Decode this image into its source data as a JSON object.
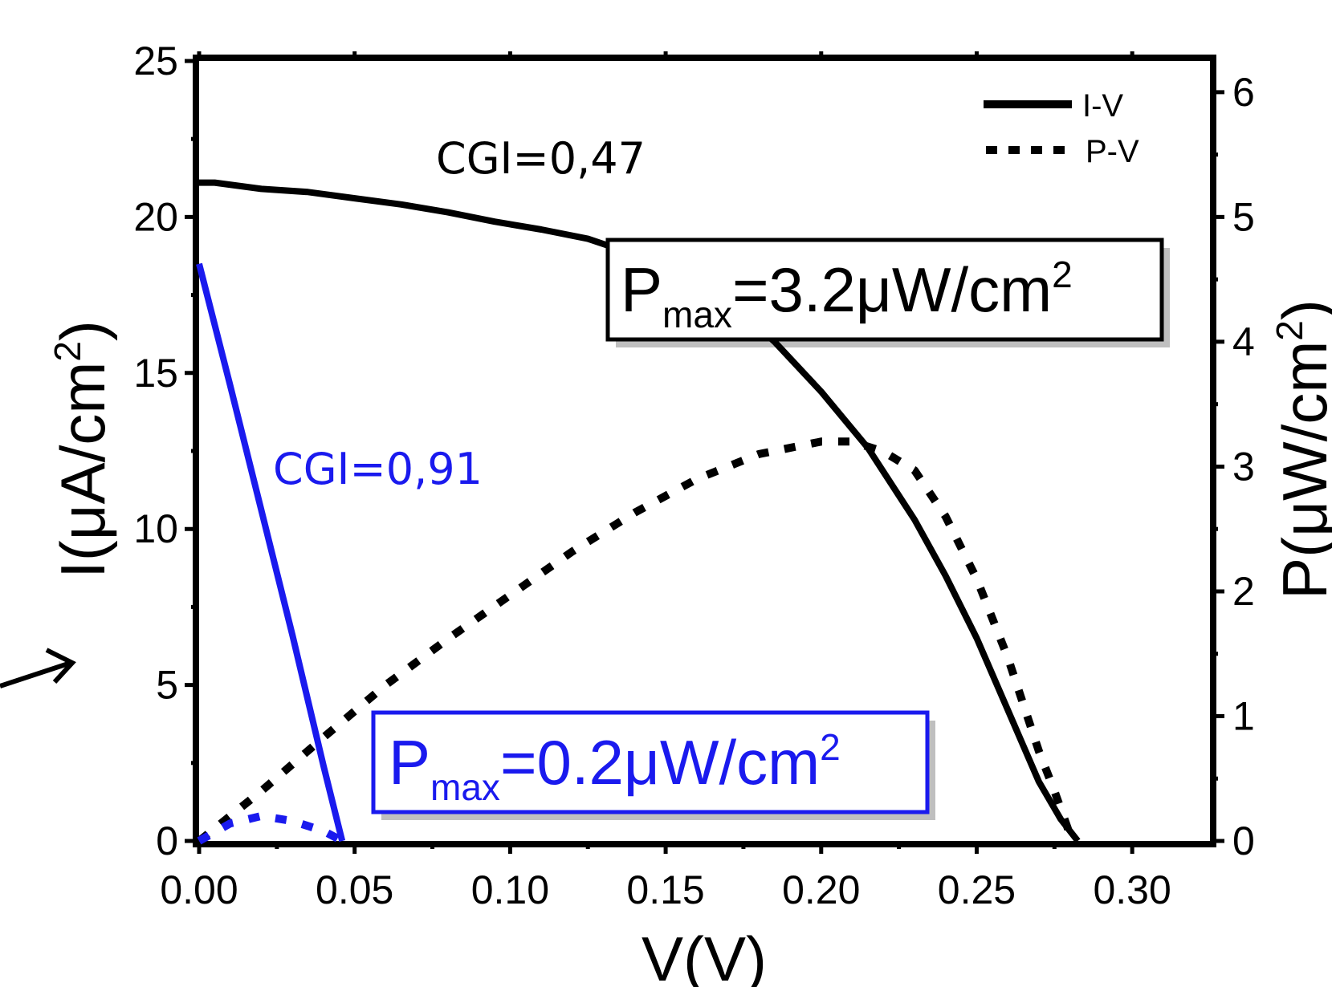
{
  "chart_data": {
    "type": "line",
    "xlabel": "V(V)",
    "ylabel_left": "I(μA/cm2)",
    "ylabel_right": "P(μW/cm2)",
    "xlim": [
      0,
      0.325
    ],
    "ylim_left": [
      0,
      25
    ],
    "ylim_right": [
      0,
      6.25
    ],
    "x_ticks": [
      "0.00",
      "0.05",
      "0.10",
      "0.15",
      "0.20",
      "0.25",
      "0.30"
    ],
    "y_left_ticks": [
      "0",
      "5",
      "10",
      "15",
      "20",
      "25"
    ],
    "y_right_ticks": [
      "0",
      "1",
      "2",
      "3",
      "4",
      "5",
      "6"
    ],
    "legend": {
      "position": "top-right",
      "entries": [
        {
          "label": "I-V",
          "style": "solid"
        },
        {
          "label": "P-V",
          "style": "dotted"
        }
      ]
    },
    "series": [
      {
        "name": "I-V",
        "annotation": "CGI=0,47",
        "axis": "left",
        "style": "solid",
        "color": "#000000",
        "x": [
          0,
          0.005,
          0.02,
          0.035,
          0.05,
          0.065,
          0.08,
          0.095,
          0.11,
          0.125,
          0.14,
          0.155,
          0.165,
          0.175,
          0.185,
          0.2,
          0.215,
          0.23,
          0.24,
          0.25,
          0.26,
          0.27,
          0.277,
          0.2825
        ],
        "y": [
          21.1,
          21.1,
          20.9,
          20.8,
          20.6,
          20.4,
          20.15,
          19.85,
          19.6,
          19.3,
          18.8,
          18.15,
          17.5,
          16.9,
          16.0,
          14.4,
          12.6,
          10.3,
          8.5,
          6.5,
          4.2,
          1.9,
          0.7,
          0.0
        ]
      },
      {
        "name": "P-V",
        "axis": "right",
        "style": "dotted",
        "color": "#000000",
        "x": [
          0,
          0.02,
          0.04,
          0.06,
          0.08,
          0.1,
          0.12,
          0.14,
          0.16,
          0.18,
          0.2,
          0.21,
          0.22,
          0.23,
          0.24,
          0.25,
          0.26,
          0.27,
          0.275,
          0.28
        ],
        "y": [
          0,
          0.4,
          0.83,
          1.25,
          1.62,
          1.97,
          2.32,
          2.63,
          2.9,
          3.1,
          3.2,
          3.2,
          3.12,
          2.97,
          2.6,
          2.1,
          1.47,
          0.72,
          0.4,
          0.05
        ]
      },
      {
        "name": "I-V",
        "annotation": "CGI=0,91",
        "axis": "left",
        "style": "solid",
        "color": "#1a1aee",
        "x": [
          0,
          0.01,
          0.02,
          0.03,
          0.04,
          0.046
        ],
        "y": [
          18.5,
          14.6,
          10.6,
          6.6,
          2.4,
          0.0
        ]
      },
      {
        "name": "P-V",
        "axis": "right",
        "style": "dotted",
        "color": "#1a1aee",
        "x": [
          0,
          0.01,
          0.02,
          0.03,
          0.04,
          0.046
        ],
        "y": [
          0,
          0.14,
          0.2,
          0.16,
          0.08,
          0
        ]
      }
    ],
    "annotations": [
      {
        "text": "CGI=0,47",
        "color": "#000000"
      },
      {
        "text": "CGI=0,91",
        "color": "#1a1aee"
      },
      {
        "main": "P",
        "sub": "max",
        "rest": "=3.2μW/cm",
        "sup": "2",
        "color": "#000000"
      },
      {
        "main": "P",
        "sub": "max",
        "rest": "=0.2μW/cm",
        "sup": "2",
        "color": "#1a1aee"
      }
    ]
  }
}
